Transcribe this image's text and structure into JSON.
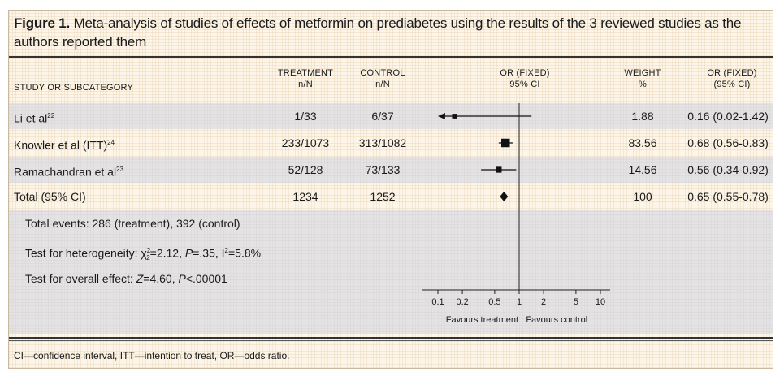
{
  "figure": {
    "label": "Figure 1.",
    "caption": " Meta-analysis of studies of effects of metformin on prediabetes using the results of the 3 reviewed studies as the authors reported them",
    "footnote": "CI—confidence interval, ITT—intention to treat, OR—odds ratio."
  },
  "headers": {
    "study": "STUDY OR SUBCATEGORY",
    "treatment_1": "TREATMENT",
    "treatment_2": "n/N",
    "control_1": "CONTROL",
    "control_2": "n/N",
    "or_1": "OR (FIXED)",
    "or_2": "95% CI",
    "weight_1": "WEIGHT",
    "weight_2": "%",
    "orci_1": "OR (FIXED)",
    "orci_2": "(95% CI)"
  },
  "rows": [
    {
      "study": "Li et al",
      "ref": "22",
      "treatment": "1/33",
      "control": "6/37",
      "weight": "1.88",
      "or_ci": "0.16 (0.02-1.42)"
    },
    {
      "study": "Knowler et al (ITT)",
      "ref": "24",
      "treatment": "233/1073",
      "control": "313/1082",
      "weight": "83.56",
      "or_ci": "0.68 (0.56-0.83)"
    },
    {
      "study": "Ramachandran et al",
      "ref": "23",
      "treatment": "52/128",
      "control": "73/133",
      "weight": "14.56",
      "or_ci": "0.56 (0.34-0.92)"
    },
    {
      "study": "Total (95% CI)",
      "ref": "",
      "treatment": "1234",
      "control": "1252",
      "weight": "100",
      "or_ci": "0.65 (0.55-0.78)"
    }
  ],
  "notes": {
    "events": "Total events: 286 (treatment), 392 (control)",
    "heterogeneity_prefix": "Test for heterogeneity: χ",
    "heterogeneity_rest": "=2.12, ",
    "heterogeneity_p": "P",
    "heterogeneity_p_val": "=.35, I",
    "heterogeneity_i2": "=5.8%",
    "overall_prefix": "Test for overall effect: ",
    "overall_z": "Z",
    "overall_z_val": "=4.60, ",
    "overall_p": "P",
    "overall_p_val": "<.00001"
  },
  "chart_data": {
    "type": "forest",
    "x_scale": "log",
    "xlim": [
      0.1,
      10
    ],
    "x_ticks": [
      0.1,
      0.2,
      0.5,
      1,
      2,
      5,
      10
    ],
    "x_tick_labels": [
      "0.1",
      "0.2",
      "0.5",
      "1",
      "2",
      "5",
      "10"
    ],
    "left_label": "Favours treatment",
    "right_label": "Favours control",
    "studies": [
      {
        "name": "Li et al",
        "or": 0.16,
        "lower": 0.02,
        "upper": 1.42,
        "weight": 1.88,
        "lower_truncated": true
      },
      {
        "name": "Knowler et al (ITT)",
        "or": 0.68,
        "lower": 0.56,
        "upper": 0.83,
        "weight": 83.56
      },
      {
        "name": "Ramachandran et al",
        "or": 0.56,
        "lower": 0.34,
        "upper": 0.92,
        "weight": 14.56
      }
    ],
    "total": {
      "name": "Total (95% CI)",
      "or": 0.65,
      "lower": 0.55,
      "upper": 0.78
    }
  }
}
